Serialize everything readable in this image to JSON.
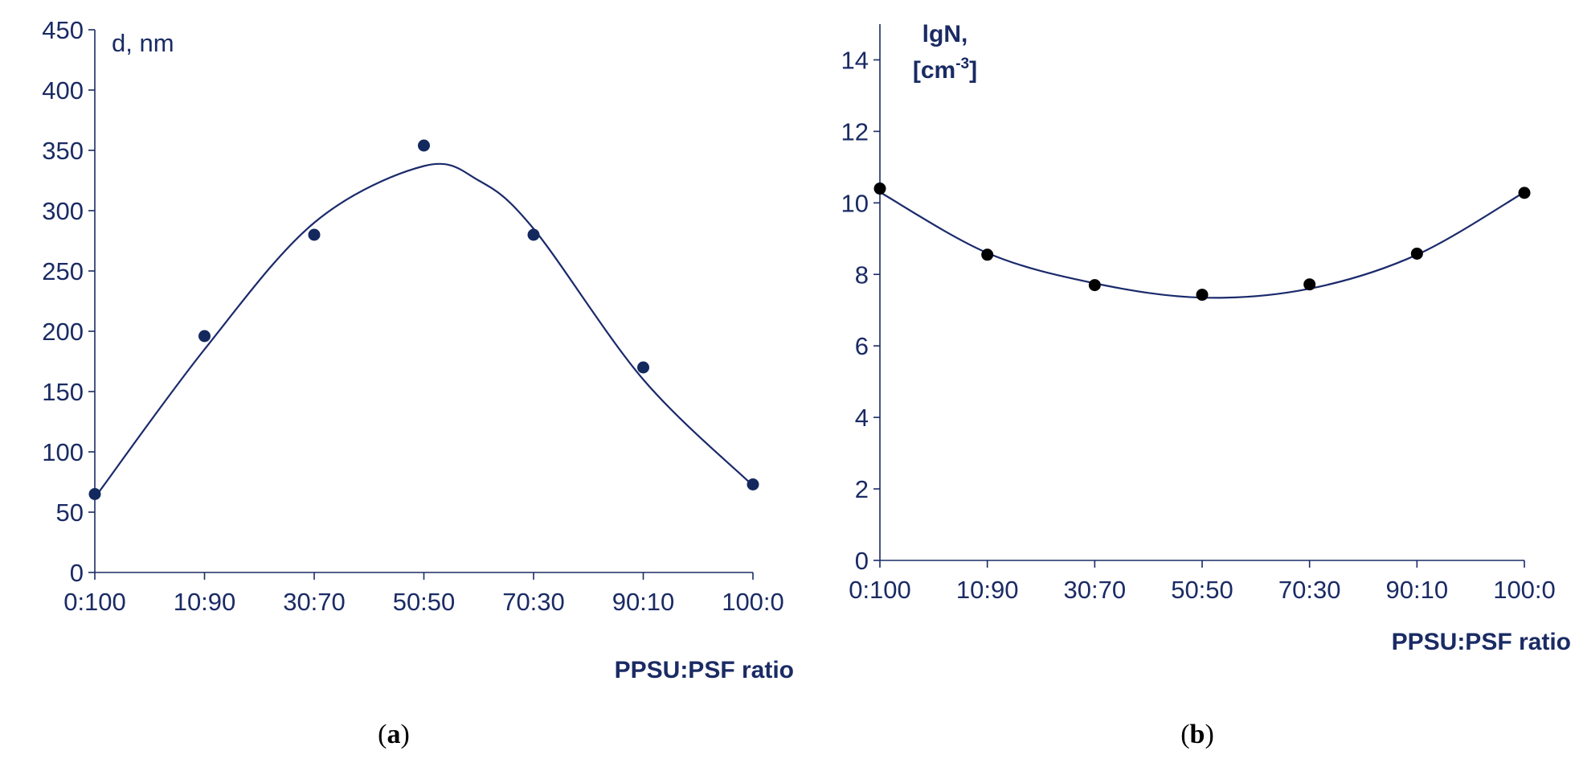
{
  "colors": {
    "axis": "#1a2b64",
    "curve_a": "#1b2a6b",
    "marker_a": "#13295e",
    "curve_b": "#1b2a6b",
    "marker_b": "#000000",
    "caption": "#000000"
  },
  "chart_data": [
    {
      "type": "scatter",
      "panel": "a",
      "caption": {
        "open": "(",
        "letter": "a",
        "close": ")"
      },
      "xlabel": "PPSU:PSF ratio",
      "ylabel": "d, nm",
      "categories": [
        "0:100",
        "10:90",
        "30:70",
        "50:50",
        "70:30",
        "90:10",
        "100:0"
      ],
      "y": [
        65,
        196,
        280,
        354,
        280,
        170,
        73
      ],
      "ylim": [
        0,
        450
      ],
      "yticks": [
        0,
        50,
        100,
        150,
        200,
        250,
        300,
        350,
        400,
        450
      ],
      "ytick_labels": [
        "0",
        "50",
        "100",
        "150",
        "200",
        "250",
        "300",
        "350",
        "400",
        "450"
      ],
      "trendline": {
        "type": "smooth",
        "points": [
          {
            "x": 0,
            "y": 62
          },
          {
            "x": 1,
            "y": 185
          },
          {
            "x": 2,
            "y": 290
          },
          {
            "x": 3,
            "y": 337
          },
          {
            "x": 3.5,
            "y": 325
          },
          {
            "x": 4,
            "y": 285
          },
          {
            "x": 5,
            "y": 160
          },
          {
            "x": 6,
            "y": 72
          }
        ]
      }
    },
    {
      "type": "scatter",
      "panel": "b",
      "caption": {
        "open": "(",
        "letter": "b",
        "close": ")"
      },
      "xlabel": "PPSU:PSF ratio",
      "ylabel": {
        "line1": "lgN,",
        "line2_pre": "[cm",
        "line2_sup": "-3",
        "line2_post": "]"
      },
      "categories": [
        "0:100",
        "10:90",
        "30:70",
        "50:50",
        "70:30",
        "90:10",
        "100:0"
      ],
      "y": [
        10.4,
        8.55,
        7.7,
        7.43,
        7.72,
        8.58,
        10.28
      ],
      "ylim": [
        0,
        15
      ],
      "yticks": [
        0,
        2,
        4,
        6,
        8,
        10,
        12,
        14
      ],
      "ytick_labels": [
        "0",
        "2",
        "4",
        "6",
        "8",
        "10",
        "12",
        "14"
      ],
      "trendline": {
        "type": "smooth",
        "points": [
          {
            "x": 0,
            "y": 10.3
          },
          {
            "x": 1,
            "y": 8.6
          },
          {
            "x": 2,
            "y": 7.75
          },
          {
            "x": 3,
            "y": 7.35
          },
          {
            "x": 4,
            "y": 7.6
          },
          {
            "x": 5,
            "y": 8.55
          },
          {
            "x": 6,
            "y": 10.3
          }
        ]
      }
    }
  ]
}
